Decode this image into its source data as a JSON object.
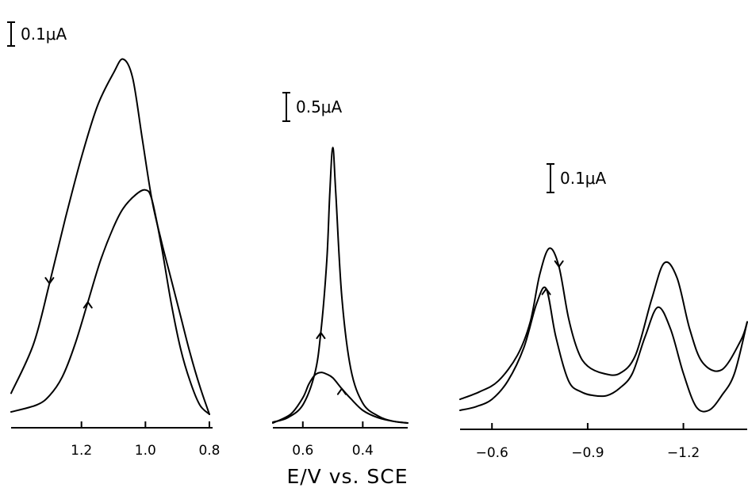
{
  "chart_data": [
    {
      "type": "line",
      "scale_bar": "0.1μA",
      "xlim": [
        1.42,
        0.79
      ],
      "tick_values": [
        1.2,
        1.0,
        0.8
      ],
      "tick_labels": [
        "1.2",
        "1.0",
        "0.8"
      ],
      "series": [
        {
          "direction": "forward",
          "x": [
            1.42,
            1.35,
            1.3,
            1.25,
            1.2,
            1.15,
            1.1,
            1.07,
            1.04,
            1.01,
            0.98,
            0.95,
            0.92,
            0.89,
            0.86,
            0.83,
            0.8
          ],
          "y": [
            0.045,
            0.15,
            0.28,
            0.42,
            0.55,
            0.66,
            0.73,
            0.76,
            0.72,
            0.59,
            0.46,
            0.37,
            0.29,
            0.21,
            0.13,
            0.06,
            0.0
          ]
        },
        {
          "direction": "reverse",
          "x": [
            0.8,
            0.83,
            0.86,
            0.89,
            0.92,
            0.95,
            0.98,
            1.0,
            1.03,
            1.07,
            1.1,
            1.14,
            1.18,
            1.22,
            1.26,
            1.3,
            1.34,
            1.42
          ],
          "y": [
            0.0,
            0.02,
            0.07,
            0.14,
            0.24,
            0.36,
            0.46,
            0.48,
            0.47,
            0.44,
            0.4,
            0.33,
            0.24,
            0.15,
            0.08,
            0.04,
            0.02,
            0.005
          ]
        }
      ],
      "arrows": [
        "down",
        "up"
      ]
    },
    {
      "type": "line",
      "scale_bar": "0.5μA",
      "xlim": [
        0.7,
        0.25
      ],
      "tick_values": [
        0.6,
        0.4
      ],
      "tick_labels": [
        "0.6",
        "0.4"
      ],
      "series": [
        {
          "direction": "forward",
          "x": [
            0.7,
            0.65,
            0.6,
            0.56,
            0.54,
            0.52,
            0.51,
            0.5,
            0.49,
            0.47,
            0.44,
            0.4,
            0.35,
            0.3,
            0.25
          ],
          "y": [
            0.01,
            0.06,
            0.2,
            0.55,
            1.0,
            1.8,
            2.55,
            3.05,
            2.55,
            1.4,
            0.6,
            0.22,
            0.08,
            0.02,
            0.0
          ]
        },
        {
          "direction": "reverse",
          "x": [
            0.25,
            0.3,
            0.35,
            0.4,
            0.44,
            0.47,
            0.5,
            0.52,
            0.54,
            0.56,
            0.58,
            0.6,
            0.64,
            0.7
          ],
          "y": [
            0.0,
            0.02,
            0.06,
            0.14,
            0.27,
            0.38,
            0.5,
            0.54,
            0.56,
            0.53,
            0.43,
            0.28,
            0.1,
            0.0
          ]
        }
      ],
      "arrows": [
        "up",
        "up"
      ]
    },
    {
      "type": "line",
      "scale_bar": "0.1μA",
      "xlim": [
        -0.5,
        -1.4
      ],
      "tick_values": [
        -0.6,
        -0.9,
        -1.2
      ],
      "tick_labels": [
        "−0.6",
        "−0.9",
        "−1.2"
      ],
      "series": [
        {
          "direction": "forward",
          "x": [
            -0.5,
            -0.56,
            -0.62,
            -0.68,
            -0.72,
            -0.75,
            -0.78,
            -0.81,
            -0.84,
            -0.87,
            -0.9,
            -0.95,
            -1.0,
            -1.05,
            -1.1,
            -1.14,
            -1.18,
            -1.22,
            -1.26,
            -1.32,
            -1.38,
            -1.4
          ],
          "y": [
            0.03,
            0.05,
            0.08,
            0.15,
            0.24,
            0.37,
            0.44,
            0.39,
            0.25,
            0.16,
            0.12,
            0.1,
            0.1,
            0.15,
            0.3,
            0.4,
            0.36,
            0.22,
            0.13,
            0.11,
            0.19,
            0.24
          ]
        },
        {
          "direction": "reverse",
          "x": [
            -1.4,
            -1.36,
            -1.32,
            -1.28,
            -1.24,
            -1.2,
            -1.16,
            -1.12,
            -1.08,
            -1.04,
            -1.0,
            -0.96,
            -0.92,
            -0.88,
            -0.84,
            -0.8,
            -0.77,
            -0.74,
            -0.7,
            -0.65,
            -0.6,
            -0.55,
            -0.5
          ],
          "y": [
            0.24,
            0.1,
            0.04,
            0.0,
            0.01,
            0.1,
            0.22,
            0.28,
            0.2,
            0.1,
            0.06,
            0.04,
            0.04,
            0.05,
            0.08,
            0.2,
            0.33,
            0.29,
            0.17,
            0.08,
            0.03,
            0.01,
            0.0
          ]
        }
      ],
      "arrows": [
        "down",
        "up"
      ]
    }
  ],
  "xlabel": "E/V vs. SCE"
}
